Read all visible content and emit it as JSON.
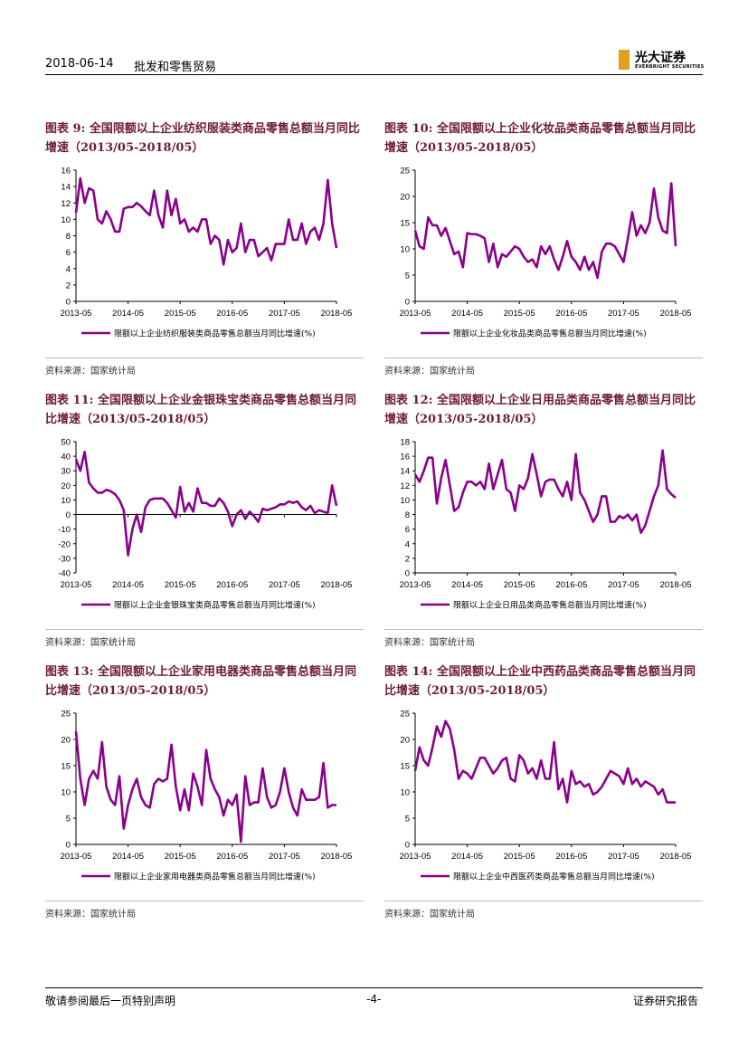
{
  "header": {
    "date": "2018-06-14",
    "section": "批发和零售贸易",
    "logo_cn": "光大证券",
    "logo_en": "EVERBRIGHT SECURITIES"
  },
  "footer": {
    "disclaimer": "敬请参阅最后一页特别声明",
    "page": "-4-",
    "type": "证券研究报告"
  },
  "chart_data": [
    {
      "type": "line",
      "title": "图表 9: 全国限额以上企业纺织服装类商品零售总额当月同比增速（2013/05-2018/05）",
      "categories": [
        "2013-05",
        null,
        null,
        null,
        null,
        null,
        null,
        null,
        null,
        null,
        null,
        null,
        "2014-05",
        null,
        null,
        null,
        null,
        null,
        null,
        null,
        null,
        null,
        null,
        null,
        "2015-05",
        null,
        null,
        null,
        null,
        null,
        null,
        null,
        null,
        null,
        null,
        null,
        "2016-05",
        null,
        null,
        null,
        null,
        null,
        null,
        null,
        null,
        null,
        null,
        null,
        "2017-05",
        null,
        null,
        null,
        null,
        null,
        null,
        null,
        null,
        null,
        null,
        null,
        "2018-05"
      ],
      "series": [
        {
          "name": "限额以上企业纺织服装类商品零售总额当月同比增速(%)",
          "color": "#8b008b",
          "values": [
            10.8,
            15.0,
            12.0,
            13.8,
            13.5,
            10.0,
            9.5,
            11.0,
            10.0,
            8.5,
            8.5,
            11.3,
            11.5,
            11.5,
            12.0,
            11.6,
            11.0,
            10.5,
            13.5,
            10.5,
            9.0,
            13.5,
            10.5,
            12.5,
            9.5,
            10.0,
            8.5,
            9.0,
            8.5,
            10.0,
            10.0,
            7.0,
            8.0,
            7.5,
            4.5,
            7.5,
            6.0,
            6.5,
            9.5,
            6.0,
            7.5,
            7.5,
            5.5,
            6.0,
            6.5,
            5.0,
            7.0,
            7.0,
            7.0,
            10.0,
            7.5,
            7.5,
            9.5,
            7.0,
            8.5,
            9.0,
            7.5,
            9.5,
            14.8,
            9.5,
            6.5
          ]
        }
      ],
      "ylim": [
        0,
        16
      ],
      "yticks": [
        0,
        2,
        4,
        6,
        8,
        10,
        12,
        14,
        16
      ],
      "source": "资料来源：国家统计局"
    },
    {
      "type": "line",
      "title": "图表 10: 全国限额以上企业化妆品类商品零售总额当月同比增速（2013/05-2018/05）",
      "categories": [
        "2013-05",
        null,
        null,
        null,
        null,
        null,
        null,
        null,
        null,
        null,
        null,
        null,
        "2014-05",
        null,
        null,
        null,
        null,
        null,
        null,
        null,
        null,
        null,
        null,
        null,
        "2015-05",
        null,
        null,
        null,
        null,
        null,
        null,
        null,
        null,
        null,
        null,
        null,
        "2016-05",
        null,
        null,
        null,
        null,
        null,
        null,
        null,
        null,
        null,
        null,
        null,
        "2017-05",
        null,
        null,
        null,
        null,
        null,
        null,
        null,
        null,
        null,
        null,
        null,
        "2018-05"
      ],
      "series": [
        {
          "name": "限额以上企业化妆品类商品零售总额当月同比增速(%)",
          "color": "#8b008b",
          "values": [
            13.5,
            10.5,
            10.0,
            16.0,
            14.5,
            14.5,
            12.5,
            14.0,
            11.5,
            9.0,
            9.5,
            6.5,
            13.0,
            12.8,
            12.8,
            12.5,
            12.0,
            7.5,
            11.0,
            6.5,
            9.0,
            8.5,
            9.5,
            10.5,
            10.0,
            8.5,
            7.5,
            8.0,
            6.5,
            10.5,
            9.0,
            10.5,
            8.0,
            6.0,
            8.5,
            11.5,
            8.5,
            7.5,
            6.0,
            8.5,
            6.0,
            7.5,
            4.5,
            9.5,
            11.0,
            11.0,
            10.5,
            9.0,
            7.5,
            12.0,
            17.0,
            12.5,
            14.5,
            13.0,
            15.0,
            21.5,
            16.0,
            13.5,
            13.0,
            22.5,
            10.5
          ]
        }
      ],
      "ylim": [
        0,
        25
      ],
      "yticks": [
        0,
        5,
        10,
        15,
        20,
        25
      ],
      "source": "资料来源：国家统计局"
    },
    {
      "type": "line",
      "title": "图表 11: 全国限额以上企业金银珠宝类商品零售总额当月同比增速（2013/05-2018/05）",
      "categories": [
        "2013-05",
        null,
        null,
        null,
        null,
        null,
        null,
        null,
        null,
        null,
        null,
        null,
        "2014-05",
        null,
        null,
        null,
        null,
        null,
        null,
        null,
        null,
        null,
        null,
        null,
        "2015-05",
        null,
        null,
        null,
        null,
        null,
        null,
        null,
        null,
        null,
        null,
        null,
        "2016-05",
        null,
        null,
        null,
        null,
        null,
        null,
        null,
        null,
        null,
        null,
        null,
        "2017-05",
        null,
        null,
        null,
        null,
        null,
        null,
        null,
        null,
        null,
        null,
        null,
        "2018-05"
      ],
      "series": [
        {
          "name": "限额以上企业金银珠宝类商品零售总额当月同比增速(%)",
          "color": "#8b008b",
          "values": [
            38,
            30,
            43,
            22,
            18,
            15,
            15,
            17,
            16,
            14,
            10,
            3,
            -28,
            -10,
            0,
            -12,
            5,
            10,
            11,
            11,
            11,
            8,
            3,
            -2,
            19,
            2,
            8,
            2,
            18,
            8,
            8,
            6,
            6,
            11,
            8,
            2,
            -8,
            0,
            3,
            -3,
            2,
            -1,
            -5,
            4,
            3,
            4,
            5,
            7,
            7,
            9,
            8,
            9,
            5,
            3,
            6,
            1,
            3,
            2,
            1,
            20,
            6
          ]
        }
      ],
      "ylim": [
        -40,
        50
      ],
      "yticks": [
        -40,
        -30,
        -20,
        -10,
        0,
        10,
        20,
        30,
        40,
        50
      ],
      "source": "资料来源：国家统计局"
    },
    {
      "type": "line",
      "title": "图表 12: 全国限额以上企业日用品类商品零售总额当月同比增速（2013/05-2018/05）",
      "categories": [
        "2013-05",
        null,
        null,
        null,
        null,
        null,
        null,
        null,
        null,
        null,
        null,
        null,
        "2014-05",
        null,
        null,
        null,
        null,
        null,
        null,
        null,
        null,
        null,
        null,
        null,
        "2015-05",
        null,
        null,
        null,
        null,
        null,
        null,
        null,
        null,
        null,
        null,
        null,
        "2016-05",
        null,
        null,
        null,
        null,
        null,
        null,
        null,
        null,
        null,
        null,
        null,
        "2017-05",
        null,
        null,
        null,
        null,
        null,
        null,
        null,
        null,
        null,
        null,
        null,
        "2018-05"
      ],
      "series": [
        {
          "name": "限额以上企业日用品类商品零售总额当月同比增速(%)",
          "color": "#8b008b",
          "values": [
            13.5,
            12.5,
            14.0,
            15.8,
            15.8,
            9.5,
            13.0,
            15.5,
            12.0,
            8.5,
            9.0,
            11.0,
            12.5,
            12.5,
            12.0,
            12.5,
            11.5,
            15.0,
            11.5,
            13.5,
            15.5,
            11.5,
            11.0,
            8.5,
            12.0,
            11.5,
            13.0,
            16.3,
            13.5,
            10.5,
            12.5,
            12.8,
            12.8,
            11.5,
            10.5,
            12.5,
            10.0,
            16.3,
            11.0,
            10.0,
            8.5,
            7.0,
            8.0,
            10.5,
            10.5,
            7.0,
            7.0,
            7.8,
            7.5,
            8.0,
            7.2,
            8.0,
            5.5,
            6.5,
            8.5,
            10.5,
            12.0,
            16.8,
            11.5,
            10.8,
            10.3
          ]
        }
      ],
      "ylim": [
        0,
        18
      ],
      "yticks": [
        0,
        2,
        4,
        6,
        8,
        10,
        12,
        14,
        16,
        18
      ],
      "source": "资料来源：国家统计局"
    },
    {
      "type": "line",
      "title": "图表 13: 全国限额以上企业家用电器类商品零售总额当月同比增速（2013/05-2018/05）",
      "categories": [
        "2013-05",
        null,
        null,
        null,
        null,
        null,
        null,
        null,
        null,
        null,
        null,
        null,
        "2014-05",
        null,
        null,
        null,
        null,
        null,
        null,
        null,
        null,
        null,
        null,
        null,
        "2015-05",
        null,
        null,
        null,
        null,
        null,
        null,
        null,
        null,
        null,
        null,
        null,
        "2016-05",
        null,
        null,
        null,
        null,
        null,
        null,
        null,
        null,
        null,
        null,
        null,
        "2017-05",
        null,
        null,
        null,
        null,
        null,
        null,
        null,
        null,
        null,
        null,
        null,
        "2018-05"
      ],
      "series": [
        {
          "name": "限额以上企业家用电器类商品零售总额当月同比增速(%)",
          "color": "#8b008b",
          "values": [
            21.5,
            12.5,
            7.5,
            12.5,
            14.0,
            12.5,
            19.5,
            11.0,
            8.5,
            7.5,
            13.0,
            3.0,
            7.5,
            10.5,
            12.5,
            9.0,
            7.5,
            7.0,
            11.5,
            12.5,
            12.0,
            12.5,
            19.0,
            11.0,
            6.5,
            10.5,
            6.5,
            13.5,
            11.0,
            7.5,
            18.0,
            12.5,
            10.5,
            9.0,
            5.5,
            8.5,
            7.5,
            9.5,
            0.5,
            13.0,
            7.5,
            8.0,
            8.0,
            14.5,
            9.0,
            7.0,
            7.5,
            10.0,
            14.5,
            10.0,
            7.0,
            5.5,
            10.5,
            8.5,
            8.5,
            8.5,
            9.0,
            15.5,
            7.0,
            7.5,
            7.5
          ]
        }
      ],
      "ylim": [
        0,
        25
      ],
      "yticks": [
        0,
        5,
        10,
        15,
        20,
        25
      ],
      "source": "资料来源：国家统计局"
    },
    {
      "type": "line",
      "title": "图表 14: 全国限额以上企业中西药品类商品零售总额当月同比增速（2013/05-2018/05）",
      "categories": [
        "2013-05",
        null,
        null,
        null,
        null,
        null,
        null,
        null,
        null,
        null,
        null,
        null,
        "2014-05",
        null,
        null,
        null,
        null,
        null,
        null,
        null,
        null,
        null,
        null,
        null,
        "2015-05",
        null,
        null,
        null,
        null,
        null,
        null,
        null,
        null,
        null,
        null,
        null,
        "2016-05",
        null,
        null,
        null,
        null,
        null,
        null,
        null,
        null,
        null,
        null,
        null,
        "2017-05",
        null,
        null,
        null,
        null,
        null,
        null,
        null,
        null,
        null,
        null,
        null,
        "2018-05"
      ],
      "series": [
        {
          "name": "限额以上企业中西医药类商品零售总额当月同比增速(%)",
          "color": "#8b008b",
          "values": [
            14.0,
            18.5,
            16.0,
            15.0,
            18.5,
            22.5,
            20.5,
            23.5,
            22.0,
            18.0,
            12.5,
            14.0,
            13.5,
            12.5,
            14.5,
            16.5,
            16.5,
            15.0,
            13.5,
            14.5,
            16.0,
            16.5,
            12.5,
            12.0,
            17.0,
            16.0,
            13.5,
            14.5,
            12.5,
            16.0,
            12.5,
            12.5,
            19.5,
            10.5,
            12.5,
            8.0,
            14.0,
            11.5,
            12.0,
            11.0,
            11.5,
            9.5,
            10.0,
            11.0,
            12.5,
            14.0,
            13.5,
            13.0,
            11.5,
            14.5,
            11.5,
            12.5,
            11.0,
            12.0,
            11.5,
            11.0,
            9.5,
            10.5,
            8.0,
            8.0,
            8.0
          ]
        }
      ],
      "ylim": [
        0,
        25
      ],
      "yticks": [
        0,
        5,
        10,
        15,
        20,
        25
      ],
      "source": "资料来源：国家统计局"
    }
  ]
}
